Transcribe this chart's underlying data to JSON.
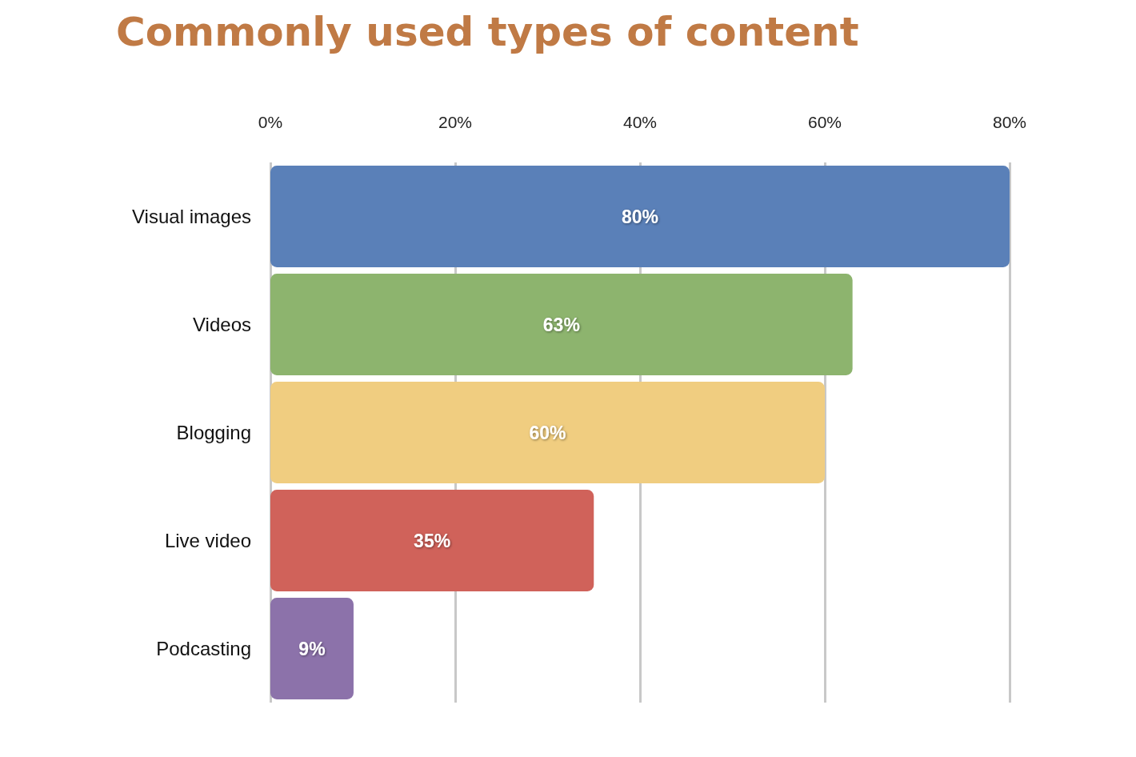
{
  "chart_data": {
    "type": "bar",
    "orientation": "horizontal",
    "title": "Commonly used types of content",
    "categories": [
      "Visual images",
      "Videos",
      "Blogging",
      "Live video",
      "Podcasting"
    ],
    "values": [
      80,
      63,
      60,
      35,
      9
    ],
    "colors": [
      "#5a80b8",
      "#8db46e",
      "#f0cd80",
      "#d0625a",
      "#8c72aa"
    ],
    "value_labels": [
      "80%",
      "63%",
      "60%",
      "35%",
      "9%"
    ],
    "xlim": [
      0,
      80
    ],
    "xticks": [
      {
        "value": 0,
        "label": "0%"
      },
      {
        "value": 20,
        "label": "20%"
      },
      {
        "value": 40,
        "label": "40%"
      },
      {
        "value": 60,
        "label": "60%"
      },
      {
        "value": 80,
        "label": "80%"
      }
    ],
    "grid": "x"
  }
}
